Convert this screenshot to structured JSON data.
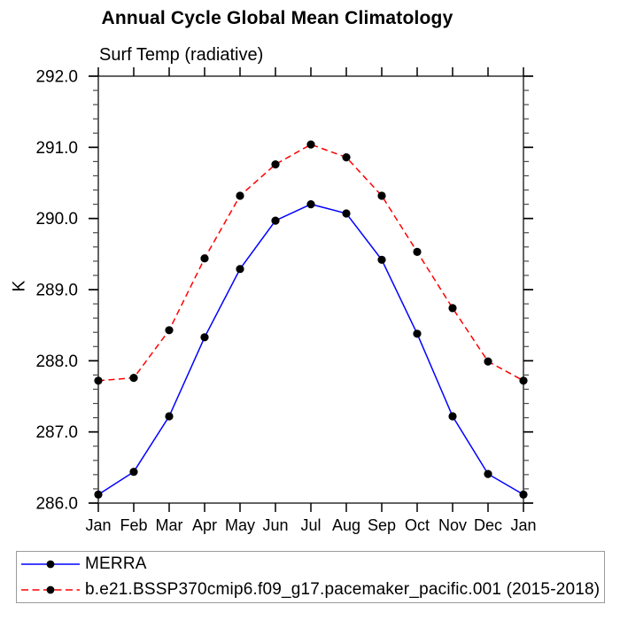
{
  "chart_data": {
    "type": "line",
    "title": "Annual Cycle Global Mean Climatology",
    "subtitle": "Surf Temp (radiative)",
    "xlabel": "",
    "ylabel": "K",
    "ylim": [
      286.0,
      292.0
    ],
    "ytick_interval": 1.0,
    "ytick_minor_interval": 0.2,
    "ytick_labels": [
      "286.0",
      "287.0",
      "288.0",
      "289.0",
      "290.0",
      "291.0",
      "292.0"
    ],
    "grid": false,
    "legend_position": "bottom-left-box",
    "categories": [
      "Jan",
      "Feb",
      "Mar",
      "Apr",
      "May",
      "Jun",
      "Jul",
      "Aug",
      "Sep",
      "Oct",
      "Nov",
      "Dec",
      "Jan"
    ],
    "series": [
      {
        "name": "MERRA",
        "line_color": "#0000ff",
        "line_style": "solid",
        "marker": "filled-circle",
        "marker_color": "#000000",
        "values": [
          286.12,
          286.44,
          287.22,
          288.33,
          289.29,
          289.97,
          290.2,
          290.07,
          289.42,
          288.38,
          287.22,
          286.41,
          286.12
        ]
      },
      {
        "name": "b.e21.BSSP370cmip6.f09_g17.pacemaker_pacific.001 (2015-2018)",
        "line_color": "#ff0000",
        "line_style": "dashed",
        "marker": "filled-circle",
        "marker_color": "#000000",
        "values": [
          287.72,
          287.76,
          288.43,
          289.44,
          290.32,
          290.76,
          291.04,
          290.86,
          290.32,
          289.53,
          288.74,
          287.99,
          287.72
        ]
      }
    ]
  }
}
